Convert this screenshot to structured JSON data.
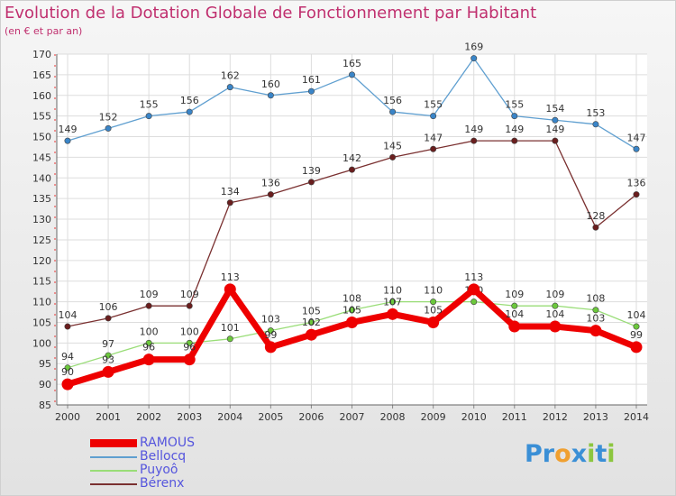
{
  "title": "Evolution de la Dotation Globale de Fonctionnement par Habitant",
  "subtitle": "(en € et par an)",
  "logo": {
    "letters": [
      {
        "ch": "P",
        "color": "#3a8fd6"
      },
      {
        "ch": "r",
        "color": "#3a8fd6"
      },
      {
        "ch": "o",
        "color": "#f0a030"
      },
      {
        "ch": "x",
        "color": "#3a8fd6"
      },
      {
        "ch": "i",
        "color": "#8cc63f"
      },
      {
        "ch": "t",
        "color": "#3a8fd6"
      },
      {
        "ch": "i",
        "color": "#8cc63f"
      }
    ]
  },
  "chart_data": {
    "type": "line",
    "title": "Evolution de la Dotation Globale de Fonctionnement par Habitant",
    "subtitle": "(en € et par an)",
    "x": [
      2000,
      2001,
      2002,
      2003,
      2004,
      2005,
      2006,
      2007,
      2008,
      2009,
      2010,
      2011,
      2012,
      2013,
      2014
    ],
    "ylim": [
      85,
      170
    ],
    "yticks": [
      85,
      90,
      95,
      100,
      105,
      110,
      115,
      120,
      125,
      130,
      135,
      140,
      145,
      150,
      155,
      160,
      165,
      170
    ],
    "grid": true,
    "legend_position": "bottom-left",
    "series": [
      {
        "name": "Bellocq",
        "color": "#5f9fd0",
        "marker": "#3a85c8",
        "values": [
          149,
          152,
          155,
          156,
          162,
          160,
          161,
          165,
          156,
          155,
          169,
          155,
          154,
          153,
          147
        ]
      },
      {
        "name": "Bérenx",
        "color": "#7a3030",
        "marker": "#6a1e1e",
        "values": [
          104,
          106,
          109,
          109,
          134,
          136,
          139,
          142,
          145,
          147,
          149,
          149,
          149,
          128,
          136
        ]
      },
      {
        "name": "Puyoô",
        "color": "#99dd77",
        "marker": "#6cc83c",
        "values": [
          94,
          97,
          100,
          100,
          101,
          103,
          105,
          108,
          110,
          110,
          110,
          109,
          109,
          108,
          104
        ]
      },
      {
        "name": "RAMOUS",
        "color": "#ee0000",
        "marker": "#ee0000",
        "values": [
          90,
          93,
          96,
          96,
          113,
          99,
          102,
          105,
          107,
          105,
          113,
          104,
          104,
          103,
          99
        ]
      }
    ],
    "legend": [
      {
        "name": "RAMOUS",
        "color": "#ee0000"
      },
      {
        "name": "Bellocq",
        "color": "#5f9fd0"
      },
      {
        "name": "Puyoô",
        "color": "#99dd77"
      },
      {
        "name": "Bérenx",
        "color": "#7a3030"
      }
    ]
  }
}
